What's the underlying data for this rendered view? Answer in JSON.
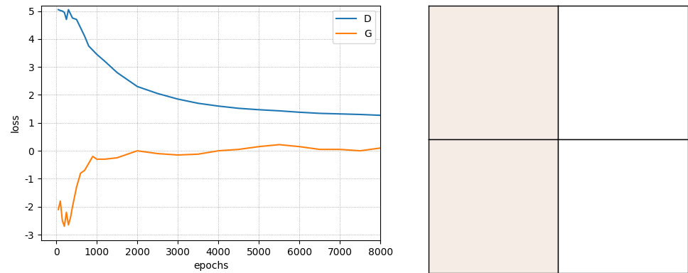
{
  "chart_data": {
    "type": "line",
    "x_label": "epochs",
    "y_label": "loss",
    "x": [
      50,
      100,
      150,
      200,
      250,
      300,
      350,
      400,
      500,
      600,
      700,
      800,
      900,
      1000,
      1200,
      1500,
      2000,
      2500,
      3000,
      3500,
      4000,
      4500,
      5000,
      5500,
      6000,
      6500,
      7000,
      7500,
      8000
    ],
    "series": [
      {
        "name": "D",
        "color": "#1f77b4",
        "values": [
          5.05,
          5.02,
          5.0,
          4.95,
          4.7,
          5.05,
          4.9,
          4.75,
          4.7,
          4.4,
          4.1,
          3.75,
          3.6,
          3.45,
          3.2,
          2.8,
          2.3,
          2.05,
          1.85,
          1.7,
          1.6,
          1.52,
          1.47,
          1.43,
          1.38,
          1.34,
          1.32,
          1.3,
          1.27
        ]
      },
      {
        "name": "G",
        "color": "#ff7f0e",
        "values": [
          -2.1,
          -1.8,
          -2.5,
          -2.7,
          -2.2,
          -2.65,
          -2.4,
          -2.0,
          -1.3,
          -0.8,
          -0.7,
          -0.45,
          -0.2,
          -0.3,
          -0.3,
          -0.25,
          0.0,
          -0.1,
          -0.15,
          -0.12,
          0.0,
          0.05,
          0.15,
          0.22,
          0.15,
          0.05,
          0.05,
          0.0,
          0.1
        ]
      }
    ],
    "xlim": [
      -370,
      8000
    ],
    "xticks": [
      0,
      1000,
      2000,
      3000,
      4000,
      5000,
      6000,
      7000,
      8000
    ],
    "ylim": [
      -3.2,
      5.2
    ],
    "yticks": [
      -3,
      -2,
      -1,
      0,
      1,
      2,
      3,
      4,
      5
    ],
    "grid": true,
    "legend": "upper right"
  }
}
